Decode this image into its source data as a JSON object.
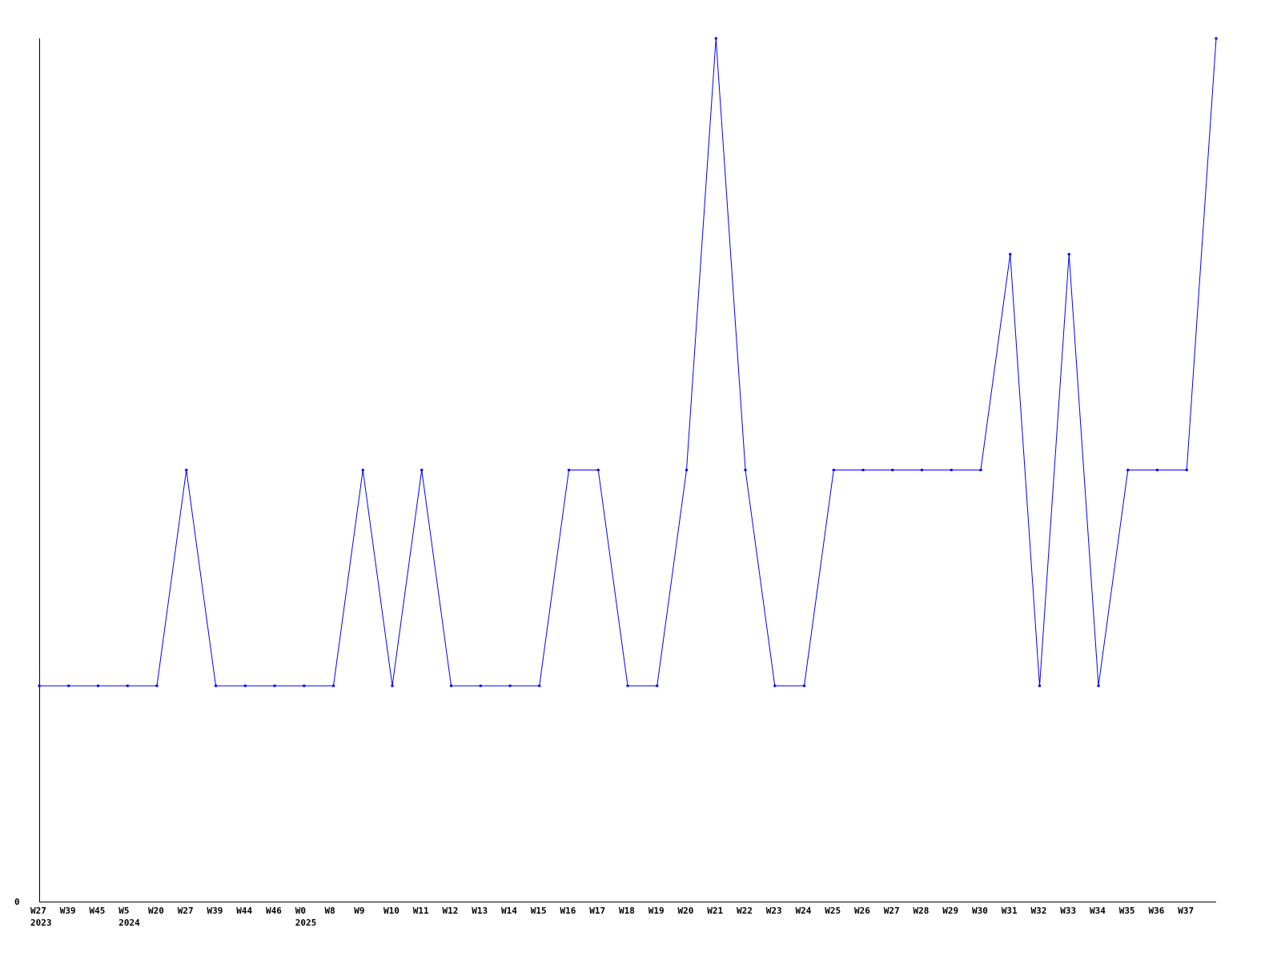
{
  "chart_data": {
    "type": "line",
    "title": "",
    "xlabel": "",
    "ylabel": "",
    "ylim": [
      0,
      4
    ],
    "y_tick_labels": [
      "0"
    ],
    "grid": false,
    "line_color": "#0000ff",
    "x": [
      "W27",
      "W39",
      "W45",
      "W5",
      "W20",
      "W27",
      "W39",
      "W44",
      "W46",
      "W0",
      "W8",
      "W9",
      "W10",
      "W11",
      "W12",
      "W13",
      "W14",
      "W15",
      "W16",
      "W17",
      "W18",
      "W19",
      "W20",
      "W21",
      "W22",
      "W23",
      "W24",
      "W25",
      "W26",
      "W27",
      "W28",
      "W29",
      "W30",
      "W31",
      "W32",
      "W33",
      "W34",
      "W35",
      "W36",
      "W37",
      ""
    ],
    "year_labels": {
      "0": "2023",
      "3": "2024",
      "9": "2025"
    },
    "values": [
      1,
      1,
      1,
      1,
      1,
      2,
      1,
      1,
      1,
      1,
      1,
      2,
      1,
      2,
      1,
      1,
      1,
      1,
      2,
      2,
      1,
      1,
      2,
      4,
      2,
      1,
      1,
      2,
      2,
      2,
      2,
      2,
      2,
      3,
      1,
      3,
      1,
      2,
      2,
      2,
      4
    ]
  }
}
